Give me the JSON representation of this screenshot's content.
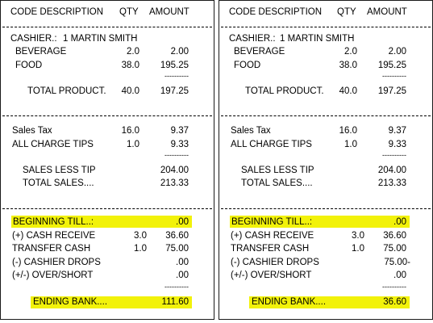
{
  "header": {
    "code_description": "CODE DESCRIPTION",
    "qty": "QTY",
    "amount": "AMOUNT"
  },
  "receipts": [
    {
      "cashier_label": "CASHIER.:",
      "cashier_name": "1 MARTIN SMITH",
      "items": [
        {
          "label": "BEVERAGE",
          "qty": "2.0",
          "amount": "2.00"
        },
        {
          "label": "FOOD",
          "qty": "38.0",
          "amount": "195.25"
        }
      ],
      "underline": "----------",
      "total_product": {
        "label": "TOTAL PRODUCT.",
        "qty": "40.0",
        "amount": "197.25"
      },
      "sales_tax": {
        "label": "Sales Tax",
        "qty": "16.0",
        "amount": "9.37"
      },
      "charge_tips": {
        "label": "ALL CHARGE TIPS",
        "qty": "1.0",
        "amount": "9.33"
      },
      "sales_less_tip": {
        "label": "SALES LESS TIP",
        "amount": "204.00"
      },
      "total_sales": {
        "label": "TOTAL SALES....",
        "amount": "213.33"
      },
      "beginning_till": {
        "label": "BEGINNING  TILL..:",
        "amount": ".00"
      },
      "cash_receive": {
        "label": "(+) CASH RECEIVE",
        "qty": "3.0",
        "amount": "36.60"
      },
      "transfer_cash": {
        "label": "TRANSFER CASH",
        "qty": "1.0",
        "amount": "75.00"
      },
      "cashier_drops": {
        "label": "(-) CASHIER DROPS",
        "amount": ".00"
      },
      "over_short": {
        "label": "(+/-) OVER/SHORT",
        "amount": ".00"
      },
      "ending_bank": {
        "label": "ENDING  BANK....",
        "amount": "111.60"
      }
    },
    {
      "cashier_label": "CASHIER.:",
      "cashier_name": "1 MARTIN SMITH",
      "items": [
        {
          "label": "BEVERAGE",
          "qty": "2.0",
          "amount": "2.00"
        },
        {
          "label": "FOOD",
          "qty": "38.0",
          "amount": "195.25"
        }
      ],
      "underline": "----------",
      "total_product": {
        "label": "TOTAL PRODUCT.",
        "qty": "40.0",
        "amount": "197.25"
      },
      "sales_tax": {
        "label": "Sales Tax",
        "qty": "16.0",
        "amount": "9.37"
      },
      "charge_tips": {
        "label": "ALL CHARGE TIPS",
        "qty": "1.0",
        "amount": "9.33"
      },
      "sales_less_tip": {
        "label": "SALES LESS TIP",
        "amount": "204.00"
      },
      "total_sales": {
        "label": "TOTAL SALES....",
        "amount": "213.33"
      },
      "beginning_till": {
        "label": "BEGINNING  TILL..:",
        "amount": ".00"
      },
      "cash_receive": {
        "label": "(+) CASH RECEIVE",
        "qty": "3.0",
        "amount": "36.60"
      },
      "transfer_cash": {
        "label": "TRANSFER CASH",
        "qty": "1.0",
        "amount": "75.00"
      },
      "cashier_drops": {
        "label": "(-) CASHIER DROPS",
        "amount": "75.00-"
      },
      "over_short": {
        "label": "(+/-) OVER/SHORT",
        "amount": ".00"
      },
      "ending_bank": {
        "label": "ENDING  BANK....",
        "amount": "36.60"
      }
    }
  ],
  "colors": {
    "highlight": "#f2f20a",
    "border": "#1a1a1a"
  }
}
